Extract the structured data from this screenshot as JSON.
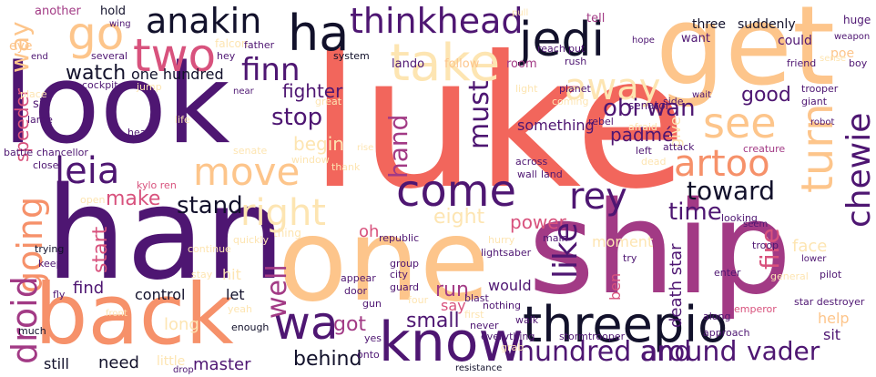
{
  "palette": {
    "dark": "#12112b",
    "purple": "#4e1672",
    "magenta": "#a23a85",
    "pink": "#d8527d",
    "coral": "#f2665c",
    "orange": "#f6916a",
    "peach": "#fdc58b",
    "cream": "#fde5b2"
  },
  "words": {
    "luke": "luke",
    "look": "look",
    "han": "han",
    "one": "one",
    "ship": "ship",
    "get": "get",
    "back": "back",
    "threepio": "threepio",
    "know": "know",
    "take": "take",
    "come": "come",
    "move": "move",
    "two": "two",
    "ha": "ha",
    "jedi": "jedi",
    "anakin": "anakin",
    "thinkhead": "thinkhead",
    "go": "go",
    "away": "away",
    "see": "see",
    "turn": "turn",
    "finn": "finn",
    "artoo": "artoo",
    "chewie": "chewie",
    "leia": "leia",
    "right": "right",
    "rey": "rey",
    "wa": "wa",
    "going": "going",
    "droid": "droid",
    "like": "like",
    "must": "must",
    "stop": "stop",
    "hand": "hand",
    "obi_wan": "obi wan",
    "stand": "stand",
    "toward": "toward",
    "good": "good",
    "fighter": "fighter",
    "watch": "watch",
    "one_hundred": "one hundred",
    "way": "way",
    "hundred_and": "hundred and",
    "around": "around",
    "vader": "vader",
    "well": "well",
    "fire": "fire",
    "time": "time",
    "small": "small",
    "behind": "behind",
    "got": "got",
    "run": "run",
    "power": "power",
    "eight": "eight",
    "make": "make",
    "start": "start",
    "begin": "begin",
    "something": "something",
    "padme": "padmé",
    "give": "give",
    "speeder": "speeder",
    "find": "find",
    "control": "control",
    "let": "let",
    "hit": "hit",
    "long": "long",
    "need": "need",
    "master": "master",
    "oh": "oh",
    "say": "say",
    "would": "would",
    "ben": "ben",
    "death_star": "death star",
    "moment": "moment",
    "help": "help",
    "sit": "sit",
    "face": "face",
    "still": "still",
    "little": "little",
    "another": "another",
    "hold": "hold",
    "eye": "eye",
    "falcon": "falcon",
    "lando": "lando",
    "follow": "follow",
    "room": "room",
    "three": "three",
    "suddenly": "suddenly",
    "could": "could",
    "want": "want",
    "tell": "tell",
    "poe": "poe",
    "huge": "huge",
    "friend": "friend",
    "boy": "boy",
    "trooper": "trooper",
    "giant": "giant",
    "creature": "creature",
    "senator": "senator",
    "attack": "attack",
    "rebel": "rebel",
    "battle": "battle",
    "chancellor": "chancellor",
    "kylo_ren": "kylo ren",
    "sir": "sir",
    "thing": "thing",
    "trying": "trying",
    "group": "group",
    "city": "city",
    "republic": "republic",
    "lightsaber": "lightsaber",
    "stormtrooper": "stormtrooper",
    "everything": "everything",
    "nothing": "nothing",
    "resistance": "resistance",
    "pilot": "pilot",
    "star_destroyer": "star destroyer",
    "enter": "enter",
    "emperor": "emperor",
    "general": "general",
    "troop": "troop",
    "approach": "approach",
    "along": "along",
    "blast": "blast",
    "guard": "guard",
    "appear": "appear",
    "door": "door",
    "stay": "stay",
    "yeah": "yeah",
    "enough": "enough",
    "much": "much",
    "drop": "drop",
    "across": "across",
    "wall": "wall",
    "land": "land",
    "left": "left",
    "dead": "dead",
    "afraid": "afraid",
    "light": "light",
    "planet": "planet",
    "coming": "coming",
    "great": "great",
    "window": "window",
    "senate": "senate",
    "thank": "thank",
    "close": "close",
    "open": "open",
    "hear": "hear",
    "life": "life",
    "cockpit": "cockpit",
    "several": "several",
    "end": "end",
    "jump": "jump",
    "place": "place",
    "large": "large",
    "keep": "keep",
    "fly": "fly",
    "continue": "continue",
    "quickly": "quickly",
    "gun": "gun",
    "main": "main",
    "try": "try",
    "hurry": "hurry",
    "walk": "walk",
    "yes": "yes",
    "never": "never",
    "first": "first",
    "grab": "grab",
    "onto": "onto",
    "four": "four",
    "system": "system",
    "father": "father",
    "hey": "hey",
    "reach": "reach",
    "put": "put",
    "rush": "rush",
    "pull": "pull",
    "hope": "hope",
    "wing": "wing",
    "sense": "sense",
    "weapon": "weapon",
    "side": "side",
    "wait": "wait",
    "robot": "robot",
    "seem": "seem",
    "lower": "lower",
    "looking": "looking",
    "front": "front",
    "rise": "rise",
    "near": "near"
  }
}
